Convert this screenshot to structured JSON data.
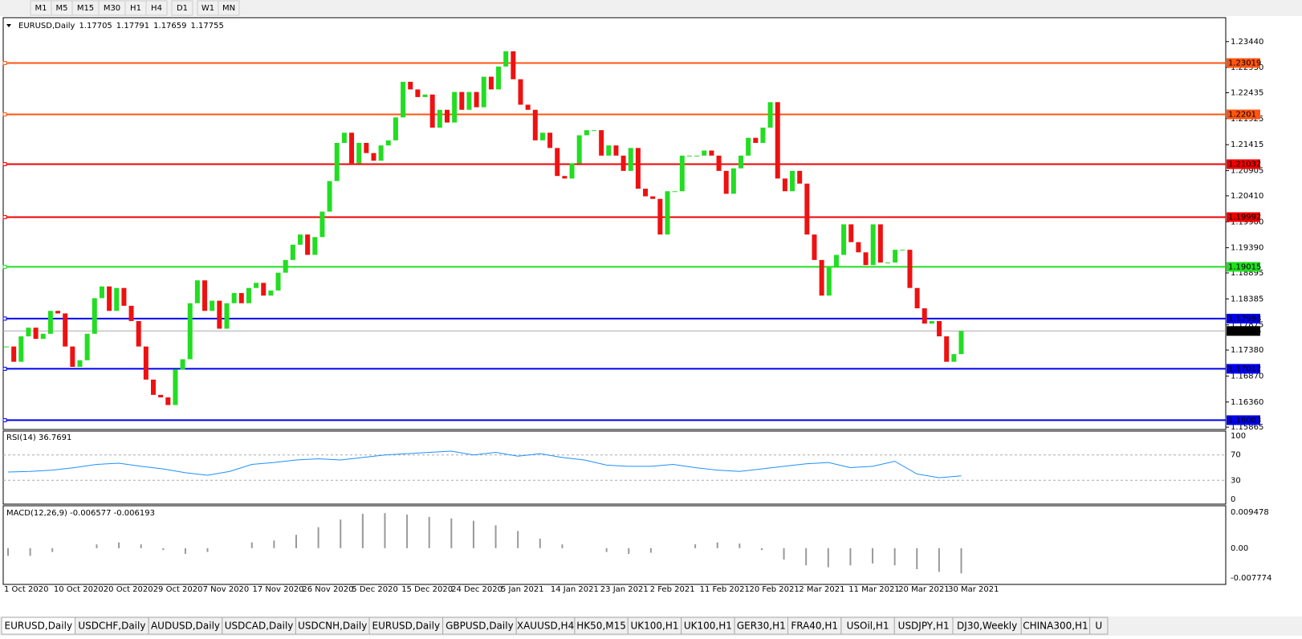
{
  "toolbar": {
    "buttons": [
      "M1",
      "M5",
      "M15",
      "M30",
      "H1",
      "H4",
      "D1",
      "W1",
      "MN"
    ]
  },
  "chart_data": {
    "type": "candlestick",
    "title": "EURUSD,Daily",
    "ohlc": [
      1.17705,
      1.17791,
      1.17659,
      1.17755
    ],
    "up_color": "#22dd22",
    "down_color": "#ee1111",
    "closes": [
      1.1745,
      1.1715,
      1.1765,
      1.1782,
      1.176,
      1.177,
      1.1815,
      1.181,
      1.1745,
      1.1705,
      1.1718,
      1.177,
      1.184,
      1.1863,
      1.1815,
      1.186,
      1.1825,
      1.1795,
      1.1745,
      1.168,
      1.165,
      1.1645,
      1.163,
      1.17,
      1.172,
      1.183,
      1.1875,
      1.1815,
      1.1835,
      1.178,
      1.183,
      1.185,
      1.183,
      1.186,
      1.187,
      1.1845,
      1.1855,
      1.189,
      1.1915,
      1.1945,
      1.1965,
      1.1925,
      1.196,
      1.201,
      1.207,
      1.2145,
      1.2165,
      1.2105,
      1.2145,
      1.2125,
      1.211,
      1.214,
      1.215,
      1.2195,
      1.2265,
      1.225,
      1.2235,
      1.224,
      1.2175,
      1.221,
      1.2185,
      1.2245,
      1.221,
      1.2245,
      1.2215,
      1.2275,
      1.225,
      1.2295,
      1.2325,
      1.227,
      1.222,
      1.221,
      1.215,
      1.2165,
      1.2135,
      1.208,
      1.2075,
      1.2105,
      1.216,
      1.217,
      1.217,
      1.212,
      1.214,
      1.212,
      1.209,
      1.2135,
      1.2055,
      1.204,
      1.2035,
      1.1965,
      1.205,
      1.205,
      1.212,
      1.212,
      1.212,
      1.213,
      1.212,
      1.209,
      1.2045,
      1.2095,
      1.212,
      1.2155,
      1.2145,
      1.2175,
      1.2225,
      1.2075,
      1.205,
      1.209,
      1.2065,
      1.1965,
      1.1915,
      1.1845,
      1.19,
      1.1925,
      1.1985,
      1.195,
      1.193,
      1.1905,
      1.1985,
      1.191,
      1.191,
      1.1935,
      1.1935,
      1.186,
      1.182,
      1.179,
      1.1795,
      1.1765,
      1.1715,
      1.173,
      1.17755
    ],
    "dates": [
      "1 Oct 2020",
      "10 Oct 2020",
      "20 Oct 2020",
      "29 Oct 2020",
      "7 Nov 2020",
      "17 Nov 2020",
      "26 Nov 2020",
      "5 Dec 2020",
      "15 Dec 2020",
      "24 Dec 2020",
      "5 Jan 2021",
      "14 Jan 2021",
      "23 Jan 2021",
      "2 Feb 2021",
      "11 Feb 2021",
      "20 Feb 2021",
      "2 Mar 2021",
      "11 Mar 2021",
      "20 Mar 2021",
      "30 Mar 2021"
    ],
    "ylim": [
      1.1582,
      1.2391
    ],
    "yticks": [
      {
        "value": 1.2344,
        "label": "1.23440"
      },
      {
        "value": 1.2293,
        "label": "1.22930"
      },
      {
        "value": 1.22435,
        "label": "1.22435"
      },
      {
        "value": 1.21925,
        "label": "1.21925"
      },
      {
        "value": 1.21415,
        "label": "1.21415"
      },
      {
        "value": 1.20905,
        "label": "1.20905"
      },
      {
        "value": 1.2041,
        "label": "1.20410"
      },
      {
        "value": 1.199,
        "label": "1.19900"
      },
      {
        "value": 1.1939,
        "label": "1.19390"
      },
      {
        "value": 1.18895,
        "label": "1.18895"
      },
      {
        "value": 1.18385,
        "label": "1.18385"
      },
      {
        "value": 1.17875,
        "label": "1.17875"
      },
      {
        "value": 1.1738,
        "label": "1.17380"
      },
      {
        "value": 1.1687,
        "label": "1.16870"
      },
      {
        "value": 1.1636,
        "label": "1.16360"
      },
      {
        "value": 1.15865,
        "label": "1.15865"
      }
    ],
    "levels": [
      {
        "value": 1.23019,
        "color": "#ff5511"
      },
      {
        "value": 1.2201,
        "color": "#ff5511"
      },
      {
        "value": 1.21032,
        "color": "#ee0000"
      },
      {
        "value": 1.19992,
        "color": "#ee0000"
      },
      {
        "value": 1.19015,
        "color": "#22dd22"
      },
      {
        "value": 1.17998,
        "color": "#0000ee"
      },
      {
        "value": 1.17012,
        "color": "#0000ee"
      },
      {
        "value": 1.16003,
        "color": "#0000ee"
      }
    ],
    "current_price": 1.17755
  },
  "rsi": {
    "title": "RSI(14) 36.7691",
    "color": "#1e90ff",
    "ylim": [
      0,
      100
    ],
    "yticks": [
      100,
      70,
      30,
      0
    ],
    "values": [
      43,
      44,
      46,
      50,
      55,
      57,
      52,
      48,
      42,
      38,
      44,
      55,
      58,
      62,
      64,
      62,
      66,
      70,
      72,
      74,
      76,
      70,
      74,
      68,
      72,
      66,
      62,
      54,
      52,
      52,
      55,
      50,
      46,
      44,
      48,
      52,
      56,
      58,
      50,
      52,
      60,
      40,
      34,
      37
    ]
  },
  "macd": {
    "title": "MACD(12,26,9) -0.006577 -0.006193",
    "ylim": [
      -0.0095,
      0.0107
    ],
    "yticks": [
      0.009478,
      {
        "value": 0,
        "label": "0.00"
      },
      -0.007774
    ],
    "values": [
      -0.002,
      -0.002,
      -0.001,
      0,
      0.001,
      0.0015,
      0.001,
      -0.0005,
      -0.0015,
      -0.001,
      0,
      0.0015,
      0.002,
      0.0035,
      0.0055,
      0.0075,
      0.009,
      0.0092,
      0.0088,
      0.0082,
      0.0078,
      0.0072,
      0.006,
      0.0045,
      0.0025,
      0.001,
      0,
      -0.001,
      -0.0015,
      -0.0012,
      0,
      0.001,
      0.0015,
      0.0012,
      -0.0005,
      -0.003,
      -0.0045,
      -0.005,
      -0.0045,
      -0.004,
      -0.0045,
      -0.0055,
      -0.0062,
      -0.0066
    ]
  },
  "tabs": [
    "EURUSD,Daily",
    "USDCHF,Daily",
    "AUDUSD,Daily",
    "USDCAD,Daily",
    "USDCNH,Daily",
    "EURUSD,Daily",
    "GBPUSD,Daily",
    "XAUUSD,H4",
    "HK50,M15",
    "UK100,H1",
    "UK100,H1",
    "GER30,H1",
    "FRA40,H1",
    "USOil,H1",
    "USDJPY,H1",
    "DJ30,Weekly",
    "CHINA300,H1",
    "U"
  ]
}
